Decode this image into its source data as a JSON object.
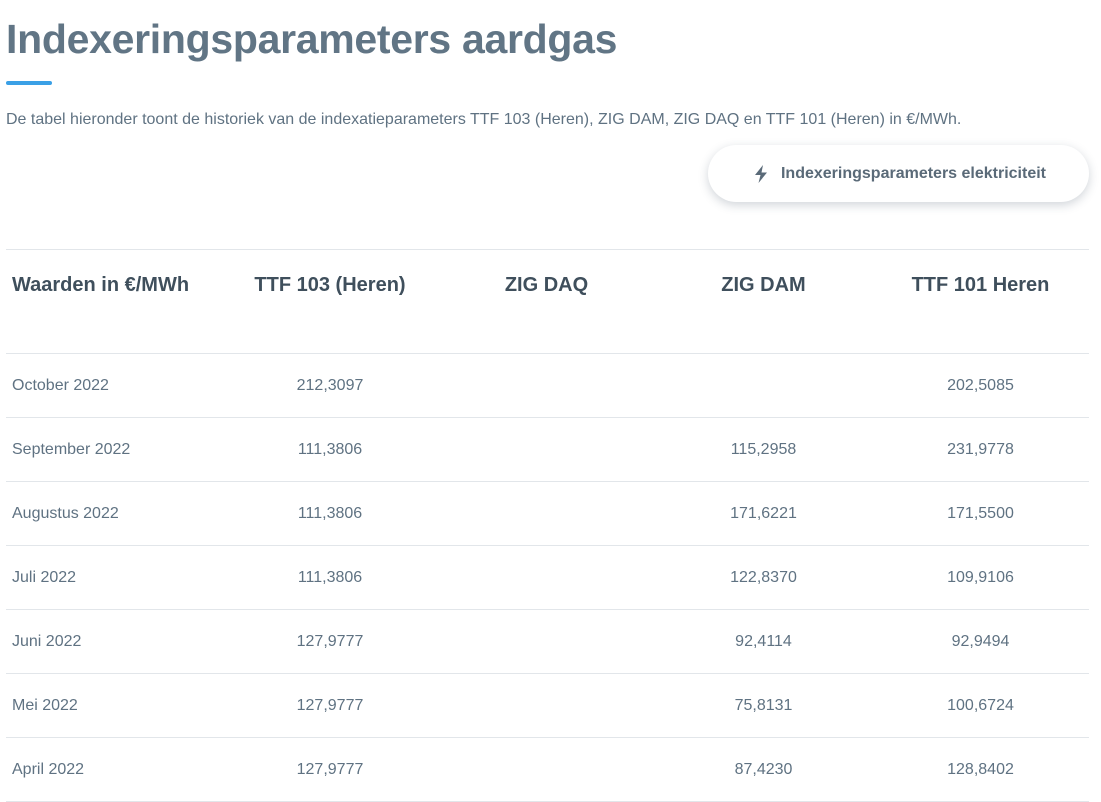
{
  "page": {
    "title": "Indexeringsparameters aardgas",
    "intro": "De tabel hieronder toont de historiek van de indexatieparameters TTF 103 (Heren), ZIG DAM, ZIG DAQ en TTF 101 (Heren) in €/MWh.",
    "accent_color": "#3aa0e6"
  },
  "switch_button": {
    "label": "Indexeringsparameters elektriciteit",
    "icon": "lightning-bolt-icon"
  },
  "table": {
    "headers": [
      "Waarden in €/MWh",
      "TTF 103 (Heren)",
      "ZIG DAQ",
      "ZIG DAM",
      "TTF 101 Heren"
    ],
    "rows": [
      [
        "October 2022",
        "212,3097",
        "",
        "",
        "202,5085"
      ],
      [
        "September 2022",
        "111,3806",
        "",
        "115,2958",
        "231,9778"
      ],
      [
        "Augustus 2022",
        "111,3806",
        "",
        "171,6221",
        "171,5500"
      ],
      [
        "Juli 2022",
        "111,3806",
        "",
        "122,8370",
        "109,9106"
      ],
      [
        "Juni 2022",
        "127,9777",
        "",
        "92,4114",
        "92,9494"
      ],
      [
        "Mei 2022",
        "127,9777",
        "",
        "75,8131",
        "100,6724"
      ],
      [
        "April 2022",
        "127,9777",
        "",
        "87,4230",
        "128,8402"
      ]
    ]
  }
}
